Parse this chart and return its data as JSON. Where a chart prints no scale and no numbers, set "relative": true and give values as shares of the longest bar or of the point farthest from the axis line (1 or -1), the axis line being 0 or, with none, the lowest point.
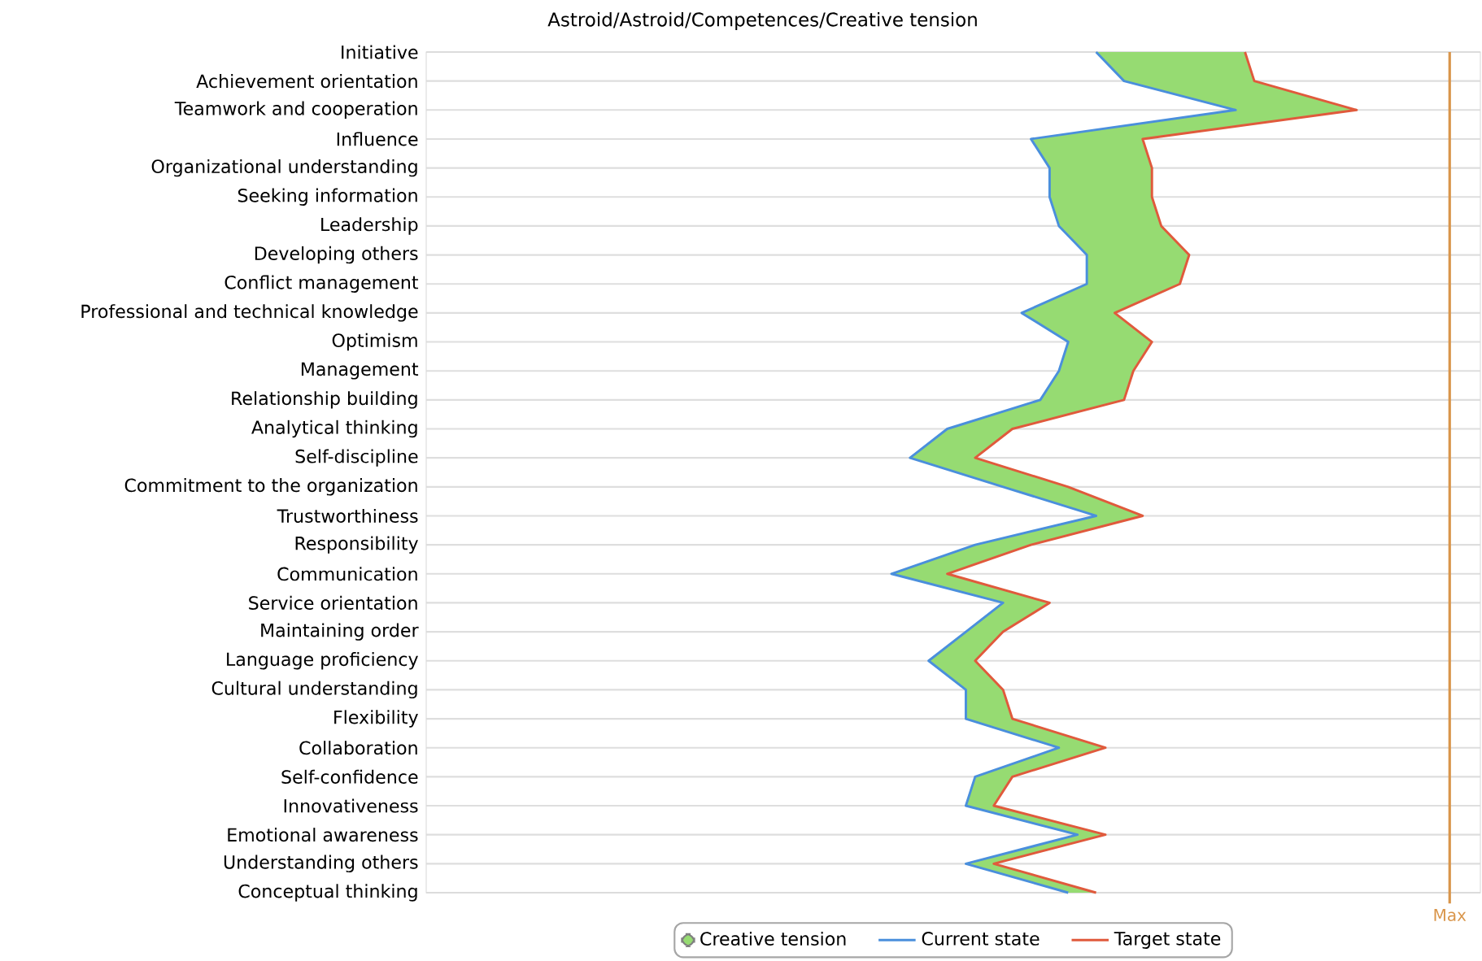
{
  "chart_data": {
    "type": "line",
    "orientation": "horizontal",
    "relative": true,
    "title": "Astroid/Astroid/Competences/Creative tension",
    "categories": [
      "Initiative",
      "Achievement orientation",
      "Teamwork and cooperation",
      "Influence",
      "Organizational understanding",
      "Seeking information",
      "Leadership",
      "Developing others",
      "Conflict management",
      "Professional and technical knowledge",
      "Optimism",
      "Management",
      "Relationship building",
      "Analytical thinking",
      "Self-discipline",
      "Commitment to the organization",
      "Trustworthiness",
      "Responsibility",
      "Communication",
      "Service orientation",
      "Maintaining order",
      "Language proficiency",
      "Cultural understanding",
      "Flexibility",
      "Collaboration",
      "Self-confidence",
      "Innovativeness",
      "Emotional awareness",
      "Understanding others",
      "Conceptual thinking"
    ],
    "series": [
      {
        "name": "Creative tension",
        "type": "area",
        "color": "#96db72",
        "values": [
          0.88,
          0.89,
          1,
          0.77,
          0.78,
          0.78,
          0.79,
          0.82,
          0.81,
          0.74,
          0.78,
          0.76,
          0.75,
          0.63,
          0.59,
          0.69,
          0.77,
          0.65,
          0.56,
          0.67,
          0.62,
          0.59,
          0.62,
          0.63,
          0.73,
          0.63,
          0.61,
          0.73,
          0.61,
          0.72
        ]
      },
      {
        "name": "Current state",
        "color": "#4a8fdc",
        "values": [
          0.72,
          0.75,
          0.87,
          0.65,
          0.67,
          0.67,
          0.68,
          0.71,
          0.71,
          0.64,
          0.69,
          0.68,
          0.66,
          0.56,
          0.52,
          0.62,
          0.72,
          0.59,
          0.5,
          0.62,
          0.58,
          0.54,
          0.58,
          0.58,
          0.68,
          0.59,
          0.58,
          0.7,
          0.58,
          0.69
        ]
      },
      {
        "name": "Target state",
        "color": "#e05a3c",
        "values": [
          0.88,
          0.89,
          1,
          0.77,
          0.78,
          0.78,
          0.79,
          0.82,
          0.81,
          0.74,
          0.78,
          0.76,
          0.75,
          0.63,
          0.59,
          0.69,
          0.77,
          0.65,
          0.56,
          0.67,
          0.62,
          0.59,
          0.62,
          0.63,
          0.73,
          0.63,
          0.61,
          0.73,
          0.61,
          0.72
        ]
      }
    ],
    "ref_lines": [
      {
        "axis": "x",
        "value": 1.1,
        "label": "Max",
        "color": "#d9954a"
      }
    ],
    "grid": "y",
    "legend": "bottom",
    "marker": "none",
    "line_style": "solid"
  }
}
